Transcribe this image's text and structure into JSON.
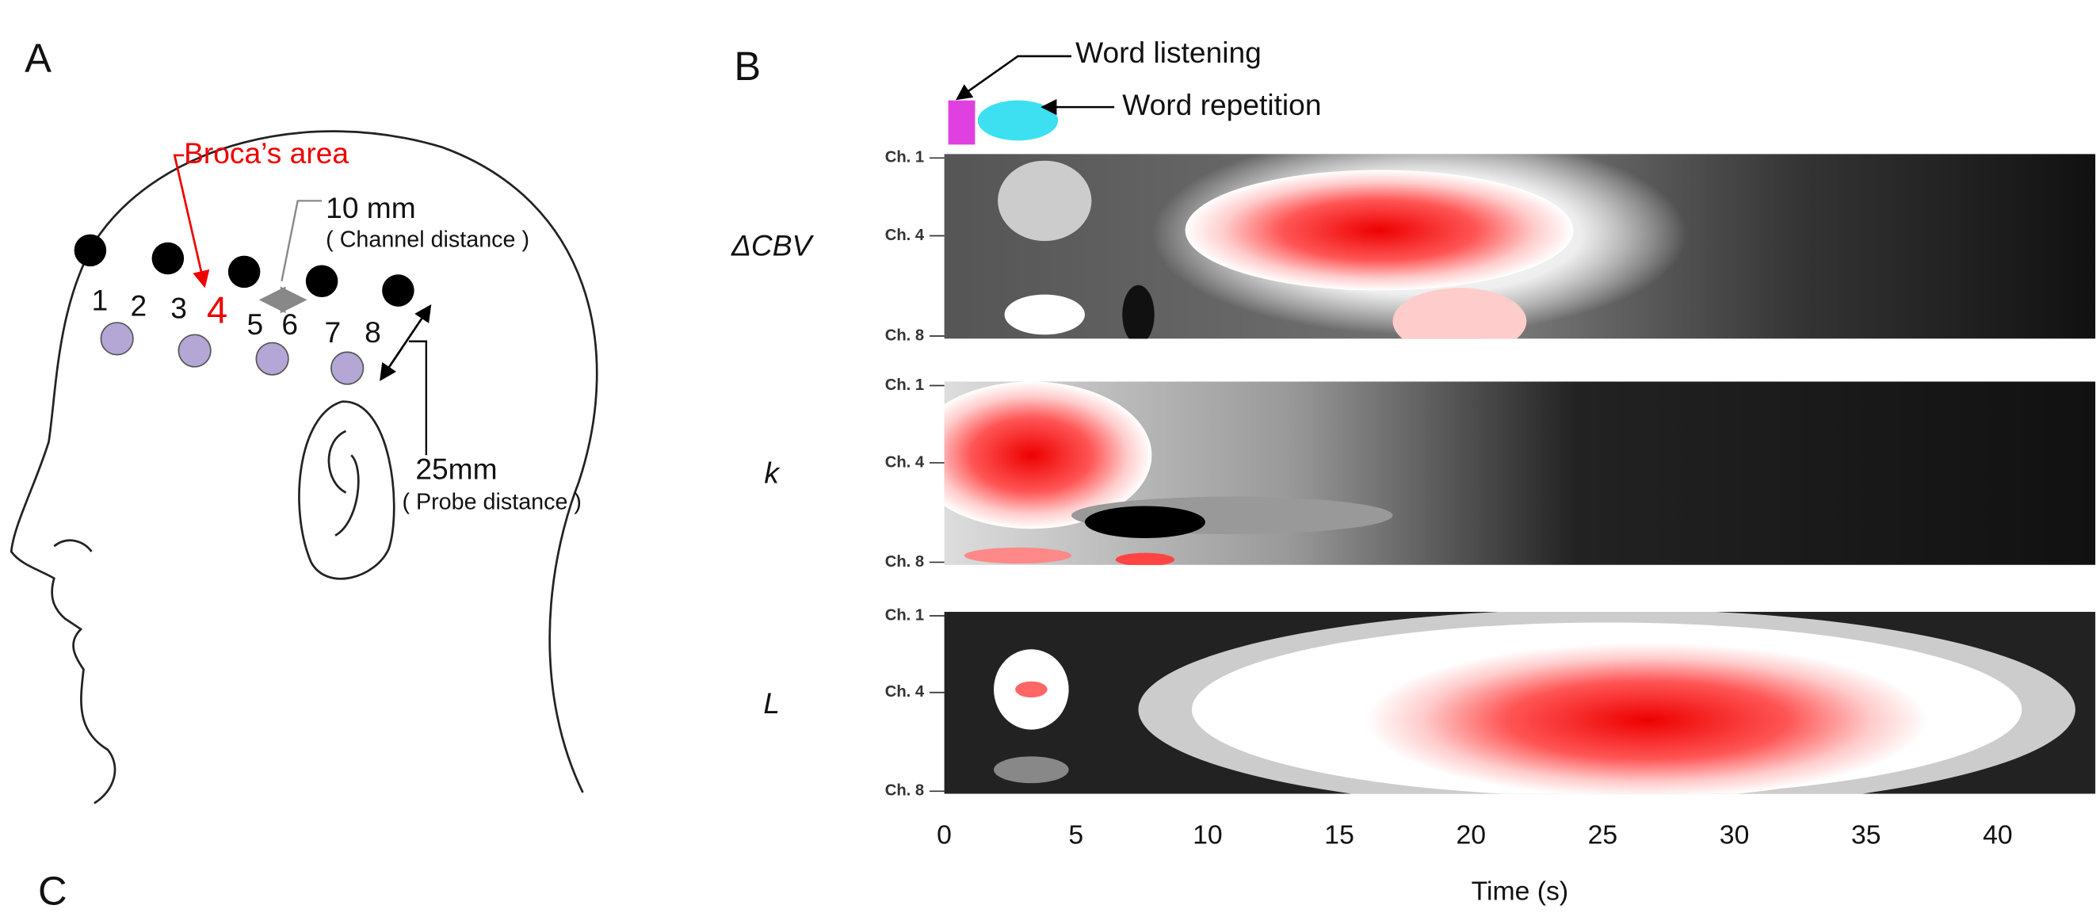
{
  "panel_a": {
    "label": "A",
    "broca": "Broca’s area",
    "channel_distance": "10 mm",
    "channel_distance_note": "( Channel distance )",
    "probe_distance": "25mm",
    "probe_distance_note": "( Probe distance )",
    "channels": [
      "1",
      "2",
      "3",
      "4",
      "5",
      "6",
      "7",
      "8"
    ]
  },
  "panel_b": {
    "label": "B",
    "legend": [
      "Word listening",
      "Word repetition"
    ],
    "rows": [
      "ΔCBV",
      "k",
      "L"
    ],
    "channel_ticks": [
      "Ch. 1",
      "Ch. 4",
      "Ch. 8"
    ],
    "time_ticks": [
      "0",
      "5",
      "10",
      "15",
      "20",
      "25",
      "30",
      "35",
      "40"
    ],
    "x_title": "Time (s)"
  },
  "panel_c": {
    "label": "C"
  }
}
